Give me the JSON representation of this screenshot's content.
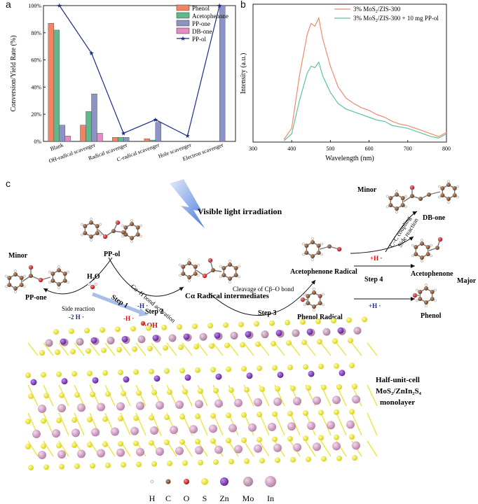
{
  "panels": {
    "a": "a",
    "b": "b",
    "c": "c"
  },
  "colors": {
    "phenol": "#f4845f",
    "acetophenone": "#5fb98a",
    "pp_one": "#8c93c7",
    "db_one": "#e58ac4",
    "pp_ol": "#1a2a8c",
    "curve1": "#f08a6a",
    "curve2": "#5cc29a",
    "mo": "#c98fb5",
    "s": "#e8e420",
    "zn": "#7a2bb3",
    "in": "#d7a0c8",
    "o": "#e02020",
    "c": "#8a5a3a",
    "h": "#ffffff"
  },
  "chart_data": [
    {
      "type": "bar",
      "title": "",
      "xlabel": "",
      "ylabel": "Conversion/Yield Rate (%)",
      "ylim": [
        0,
        100
      ],
      "yticks": [
        "0%",
        "20%",
        "40%",
        "60%",
        "80%",
        "100%"
      ],
      "categories": [
        "Blank",
        "OH-radical scavenger",
        "Radical scavenger",
        "C-radical scavenger",
        "Hole scavenger",
        "Electron scavenger"
      ],
      "series": [
        {
          "name": "Phenol",
          "values": [
            87,
            12,
            3,
            2,
            0,
            0
          ]
        },
        {
          "name": "Acetophenone",
          "values": [
            82,
            22,
            3,
            1,
            0,
            0
          ]
        },
        {
          "name": "PP-one",
          "values": [
            12,
            35,
            3,
            14,
            0,
            100
          ]
        },
        {
          "name": "DB-one",
          "values": [
            4,
            6,
            0,
            0,
            0,
            0
          ]
        }
      ],
      "line_series": {
        "name": "PP-ol",
        "values": [
          100,
          65,
          6,
          16,
          4,
          100
        ]
      },
      "legend": "top-right"
    },
    {
      "type": "line",
      "title": "",
      "xlabel": "Wavelength (nm)",
      "ylabel": "Intensity (a.u.)",
      "xlim": [
        300,
        800
      ],
      "xticks": [
        "300",
        "400",
        "500",
        "600",
        "700",
        "800"
      ],
      "series": [
        {
          "name": "3% MoS2/ZIS-300",
          "x": [
            380,
            400,
            420,
            440,
            450,
            460,
            470,
            480,
            500,
            520,
            540,
            560,
            580,
            600,
            620,
            640,
            660,
            680,
            700,
            720,
            740,
            760,
            780,
            800
          ],
          "y": [
            2,
            10,
            48,
            78,
            86,
            84,
            90,
            75,
            55,
            40,
            32,
            28,
            25,
            23,
            20,
            18,
            15,
            13,
            12,
            10,
            8,
            6,
            4,
            7
          ]
        },
        {
          "name": "3% MoS2/ZIS-300 + 10 mg PP-ol",
          "x": [
            380,
            400,
            420,
            440,
            450,
            460,
            470,
            480,
            500,
            520,
            540,
            560,
            580,
            600,
            620,
            640,
            660,
            680,
            700,
            720,
            740,
            760,
            780,
            800
          ],
          "y": [
            1,
            6,
            30,
            50,
            55,
            54,
            58,
            48,
            36,
            28,
            24,
            22,
            20,
            18,
            16,
            15,
            12,
            11,
            10,
            8,
            6,
            4,
            3,
            6
          ]
        }
      ],
      "legend": "top-right"
    }
  ],
  "legend_a": {
    "phenol": "Phenol",
    "acetophenone": "Acetophenone",
    "pp_one": "PP-one",
    "db_one": "DB-one",
    "pp_ol": "PP-ol"
  },
  "legend_b": {
    "s1_pre": "3% MoS",
    "s1_sub": "2",
    "s1_post": "/ZIS-300",
    "s2_pre": "3% MoS",
    "s2_sub": "2",
    "s2_post": "/ZIS-300 + 10 mg PP-ol"
  },
  "diagram": {
    "light": "Visible light irradiation",
    "minor1": "Minor",
    "minor2": "Minor",
    "major": "Major",
    "pp_ol": "PP-ol",
    "pp_one": "PP-one",
    "h2o": "H₂O",
    "db_one": "DB-one",
    "acetophenone_radical": "Acetophenone Radical",
    "acetophenone": "Acetophenone",
    "phenol_radical": "Phenol Radical",
    "phenol": "Phenol",
    "c_radical": "Cα Radical intermediates",
    "side_reaction": "Side reaction",
    "minus_2h": "-2 H ·",
    "step1": "Step 1",
    "minus_h_red": "-H ·",
    "step2_label": "Cα–H bond activation",
    "minus_h_blue": "-H ·",
    "step2": "Step 2",
    "step3_label": "Cleavage of Cβ–O bond",
    "step3": "Step 3",
    "step4": "Step 4",
    "plus_h_red": "+H ·",
    "plus_h_blue": "+H ·",
    "cc_coupling": "C–C coupling",
    "side_reaction2": "Side reaction",
    "oh_label": "·OH",
    "half_unit_1": "Half-unit-cell",
    "half_unit_2": "MoS₂/ZnIn₂S₄",
    "half_unit_3": "monolayer"
  },
  "atom_legend": [
    "H",
    "C",
    "O",
    "S",
    "Zn",
    "Mo",
    "In"
  ]
}
